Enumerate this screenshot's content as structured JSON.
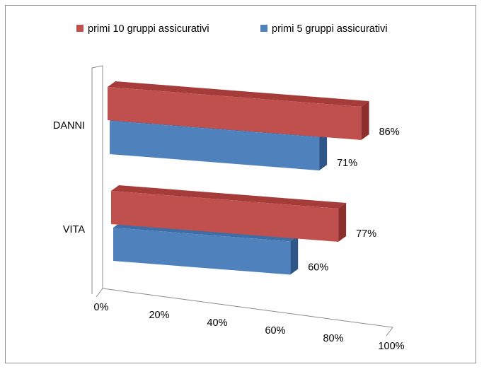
{
  "chart_data": {
    "type": "bar",
    "orientation": "horizontal",
    "three_d": true,
    "categories": [
      "DANNI",
      "VITA"
    ],
    "series": [
      {
        "name": "primi 10 gruppi assicurativi",
        "values": [
          86,
          77
        ],
        "labels": [
          "86%",
          "77%"
        ],
        "color": "#c0504d",
        "top_color": "#a63c3a",
        "side_color": "#8c2f2d"
      },
      {
        "name": "primi 5 gruppi assicurativi",
        "values": [
          71,
          60
        ],
        "labels": [
          "71%",
          "60%"
        ],
        "color": "#4f81bd",
        "top_color": "#3f6ea6",
        "side_color": "#2f5688"
      }
    ],
    "xlim": [
      0,
      100
    ],
    "x_ticks": [
      "0%",
      "20%",
      "40%",
      "60%",
      "80%",
      "100%"
    ],
    "grid": false,
    "legend_position": "top"
  }
}
